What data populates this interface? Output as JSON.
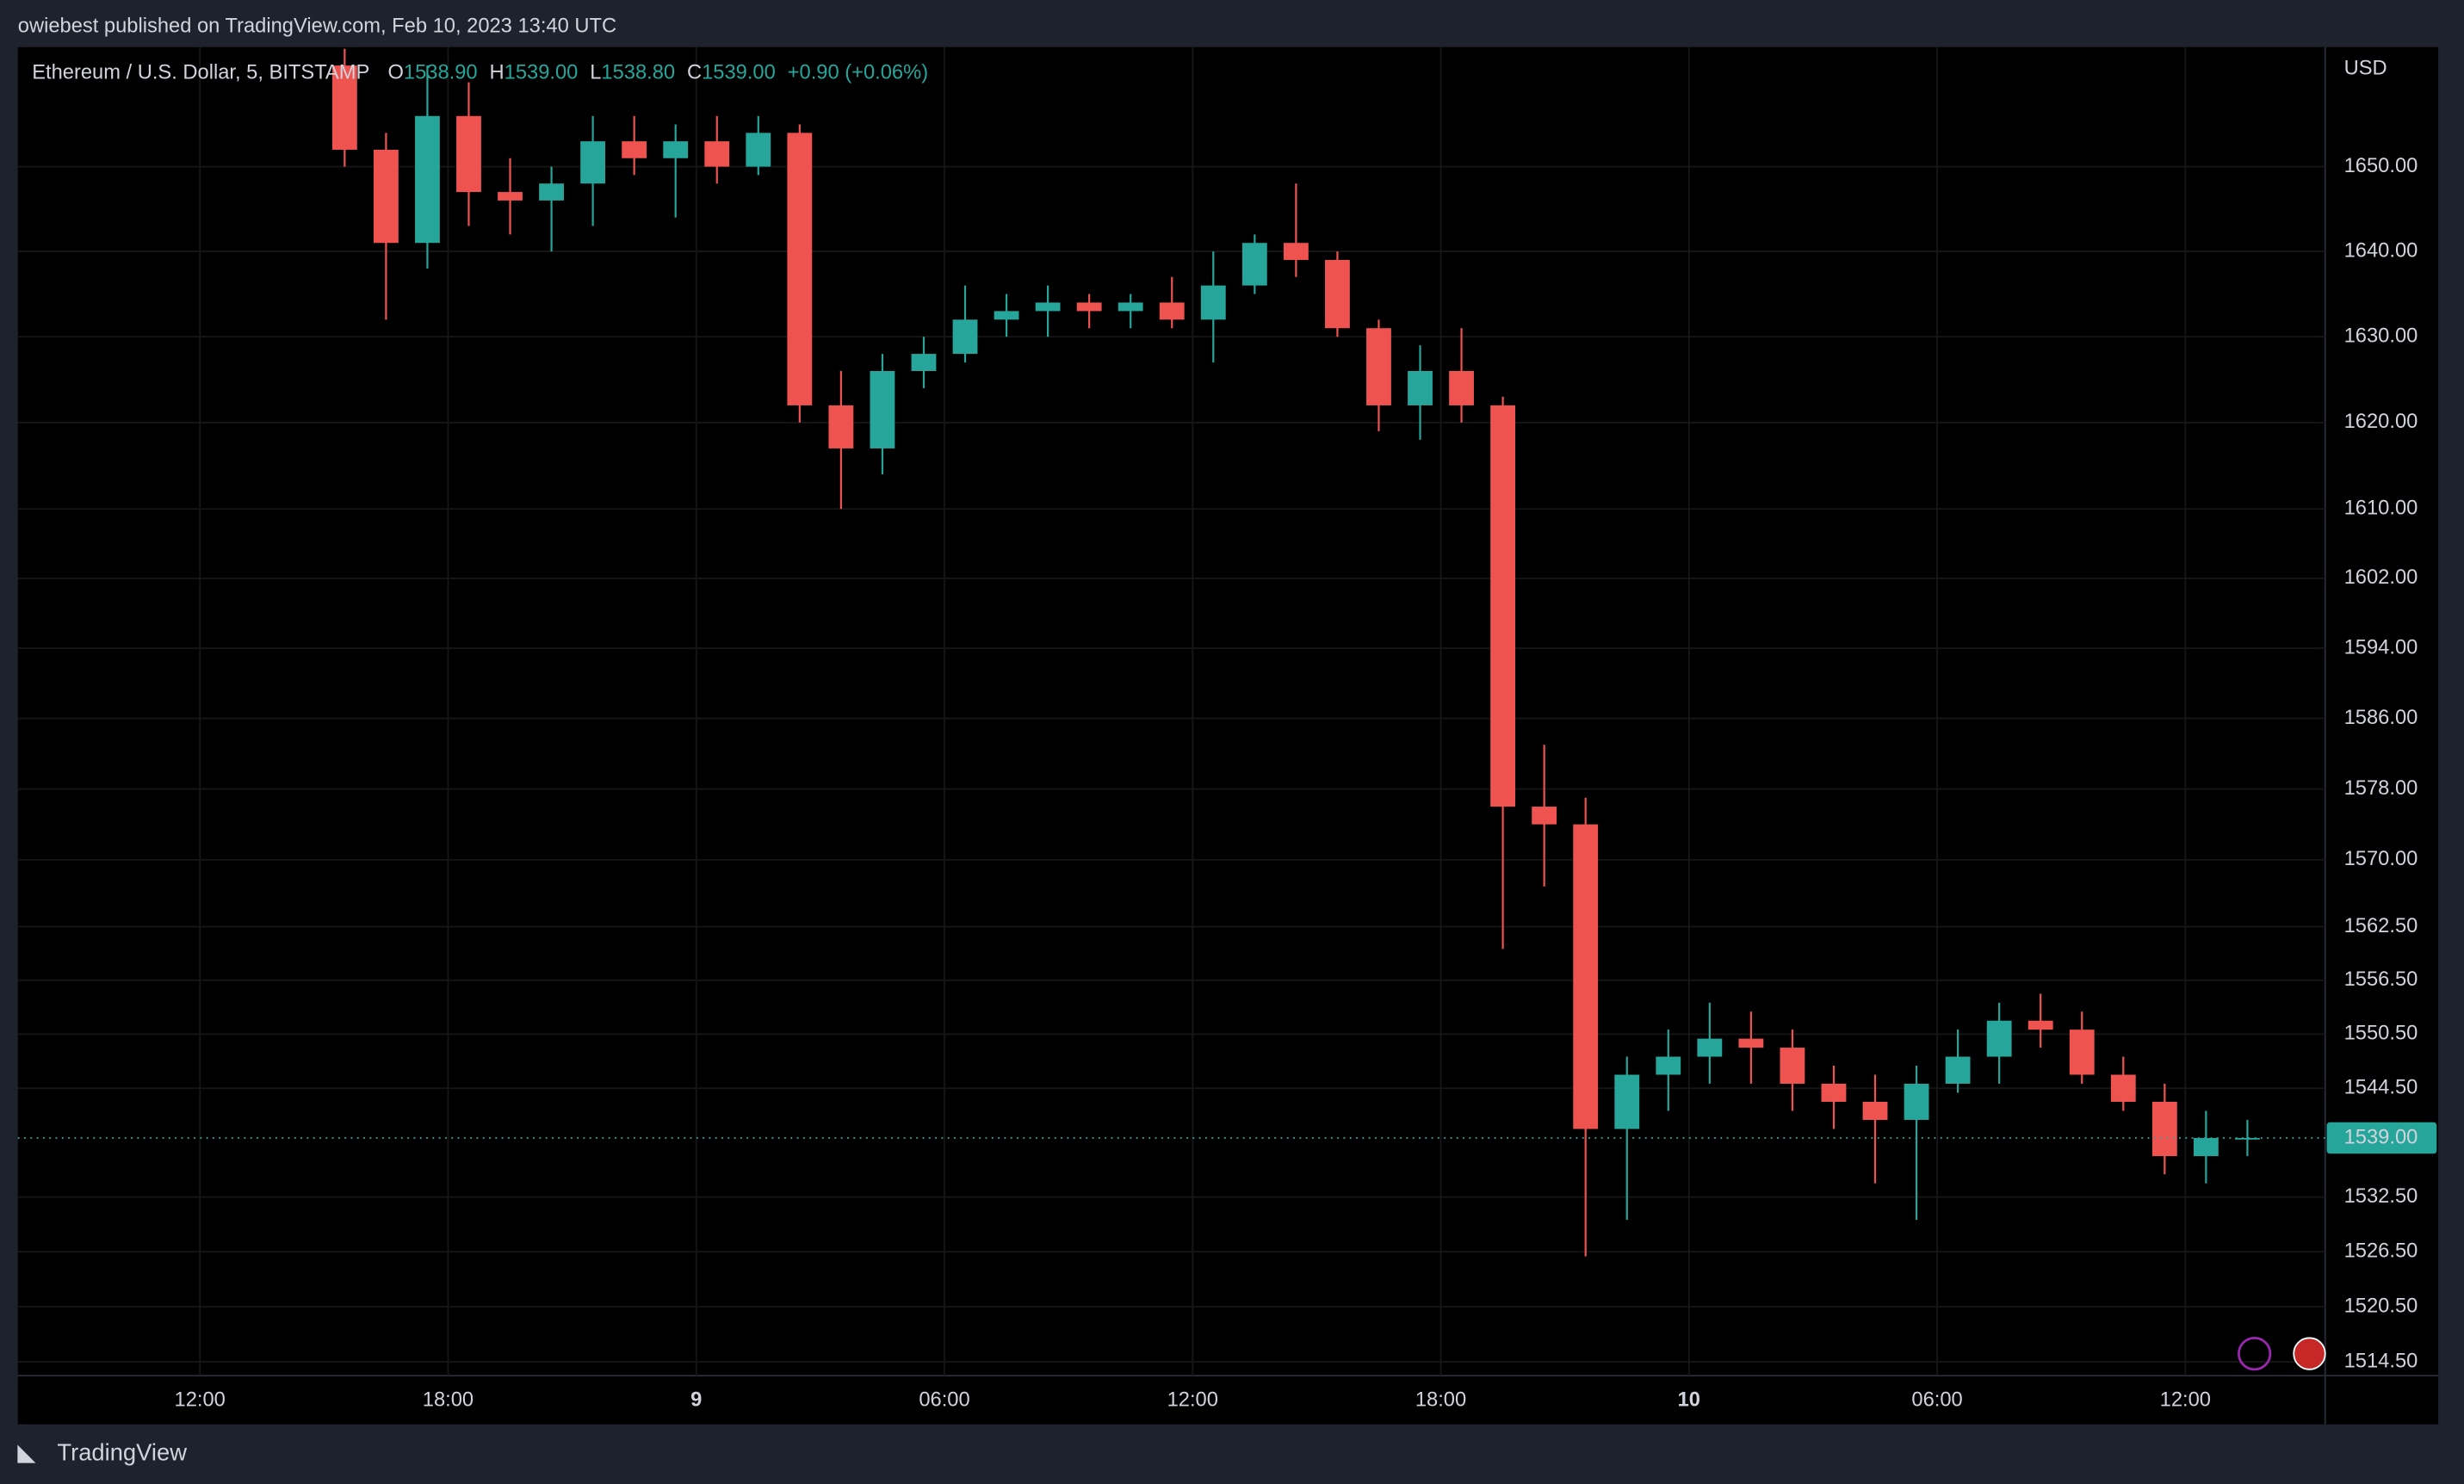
{
  "header": {
    "publisher": "owiebest published on TradingView.com, Feb 10, 2023 13:40 UTC"
  },
  "chart_data": {
    "type": "candlestick",
    "title": "Ethereum / U.S. Dollar, 5, BITSTAMP",
    "currency": "USD",
    "readout": [
      {
        "label": "O",
        "value": "1538.90"
      },
      {
        "label": "H",
        "value": "1539.00"
      },
      {
        "label": "L",
        "value": "1538.80"
      },
      {
        "label": "C",
        "value": "1539.00"
      }
    ],
    "change": "+0.90 (+0.06%)",
    "x": [
      15,
      16,
      17,
      18,
      19,
      20,
      21,
      22,
      23,
      24,
      25,
      26,
      27,
      28,
      29,
      30,
      31,
      32,
      33,
      34,
      35,
      36,
      37,
      38,
      39,
      40,
      41,
      42,
      43,
      44,
      45,
      46,
      47,
      48,
      49,
      50,
      51,
      52,
      53,
      54,
      55,
      56,
      57,
      58,
      59,
      60,
      61
    ],
    "open": [
      1662,
      1652,
      1641,
      1656,
      1647,
      1646,
      1648,
      1653,
      1651,
      1653,
      1650,
      1654,
      1622,
      1617,
      1626,
      1628,
      1632,
      1633,
      1634,
      1633,
      1634,
      1632,
      1636,
      1641,
      1639,
      1631,
      1622,
      1626,
      1622,
      1576,
      1574,
      1540,
      1546,
      1548,
      1550,
      1549,
      1545,
      1543,
      1541,
      1545,
      1548,
      1552,
      1551,
      1546,
      1543,
      1537,
      1539
    ],
    "high": [
      1664,
      1654,
      1662,
      1660,
      1651,
      1650,
      1656,
      1656,
      1655,
      1656,
      1656,
      1655,
      1626,
      1628,
      1630,
      1636,
      1635,
      1636,
      1635,
      1635,
      1637,
      1640,
      1642,
      1648,
      1640,
      1632,
      1629,
      1631,
      1623,
      1583,
      1577,
      1548,
      1551,
      1554,
      1553,
      1551,
      1547,
      1546,
      1547,
      1551,
      1554,
      1555,
      1553,
      1548,
      1545,
      1542,
      1541
    ],
    "low": [
      1650,
      1632,
      1638,
      1643,
      1642,
      1640,
      1643,
      1649,
      1644,
      1648,
      1649,
      1620,
      1610,
      1614,
      1624,
      1627,
      1630,
      1630,
      1631,
      1631,
      1631,
      1627,
      1635,
      1637,
      1630,
      1619,
      1618,
      1620,
      1560,
      1567,
      1526,
      1530,
      1542,
      1545,
      1545,
      1542,
      1540,
      1534,
      1530,
      1544,
      1545,
      1549,
      1545,
      1542,
      1535,
      1534,
      1537
    ],
    "close": [
      1652,
      1641,
      1656,
      1647,
      1646,
      1648,
      1653,
      1651,
      1653,
      1650,
      1654,
      1622,
      1617,
      1626,
      1628,
      1632,
      1633,
      1634,
      1633,
      1634,
      1632,
      1636,
      1641,
      1639,
      1631,
      1622,
      1626,
      1622,
      1576,
      1574,
      1540,
      1546,
      1548,
      1550,
      1549,
      1545,
      1543,
      1541,
      1545,
      1548,
      1552,
      1551,
      1546,
      1543,
      1537,
      1539,
      1539
    ],
    "up_color": "#26a69a",
    "down_color": "#ef5350",
    "log_scale": true,
    "grid": true,
    "xlim": [
      7.6,
      63.38
    ],
    "ylim": [
      1513,
      1664.2
    ],
    "xticks": [
      {
        "value": 12,
        "label": "12:00"
      },
      {
        "value": 18,
        "label": "18:00"
      },
      {
        "value": 24,
        "label": "9"
      },
      {
        "value": 30,
        "label": "06:00"
      },
      {
        "value": 36,
        "label": "12:00"
      },
      {
        "value": 42,
        "label": "18:00"
      },
      {
        "value": 48,
        "label": "10"
      },
      {
        "value": 54,
        "label": "06:00"
      },
      {
        "value": 60,
        "label": "12:00"
      }
    ],
    "yticks": [
      {
        "value": 1650,
        "label": "1650.00"
      },
      {
        "value": 1640,
        "label": "1640.00"
      },
      {
        "value": 1630,
        "label": "1630.00"
      },
      {
        "value": 1620,
        "label": "1620.00"
      },
      {
        "value": 1610,
        "label": "1610.00"
      },
      {
        "value": 1602,
        "label": "1602.00"
      },
      {
        "value": 1594,
        "label": "1594.00"
      },
      {
        "value": 1586,
        "label": "1586.00"
      },
      {
        "value": 1578,
        "label": "1578.00"
      },
      {
        "value": 1570,
        "label": "1570.00"
      },
      {
        "value": 1562.5,
        "label": "1562.50"
      },
      {
        "value": 1556.5,
        "label": "1556.50"
      },
      {
        "value": 1550.5,
        "label": "1550.50"
      },
      {
        "value": 1544.5,
        "label": "1544.50"
      },
      {
        "value": 1532.5,
        "label": "1532.50"
      },
      {
        "value": 1526.5,
        "label": "1526.50"
      },
      {
        "value": 1520.5,
        "label": "1520.50"
      },
      {
        "value": 1514.5,
        "label": "1514.50"
      }
    ],
    "last_price": {
      "value": 1539,
      "label": "1539.00"
    }
  },
  "footer": {
    "brand": "TradingView"
  }
}
